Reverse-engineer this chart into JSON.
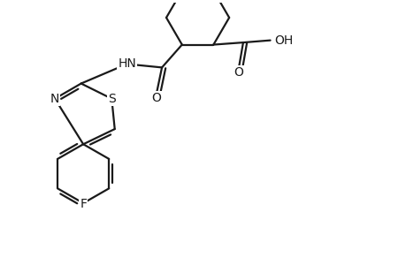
{
  "bg_color": "#ffffff",
  "line_color": "#1a1a1a",
  "line_width": 1.6,
  "font_size": 10,
  "figsize": [
    4.6,
    3.0
  ],
  "dpi": 100,
  "xlim": [
    0,
    9.2
  ],
  "ylim": [
    0,
    6.0
  ]
}
